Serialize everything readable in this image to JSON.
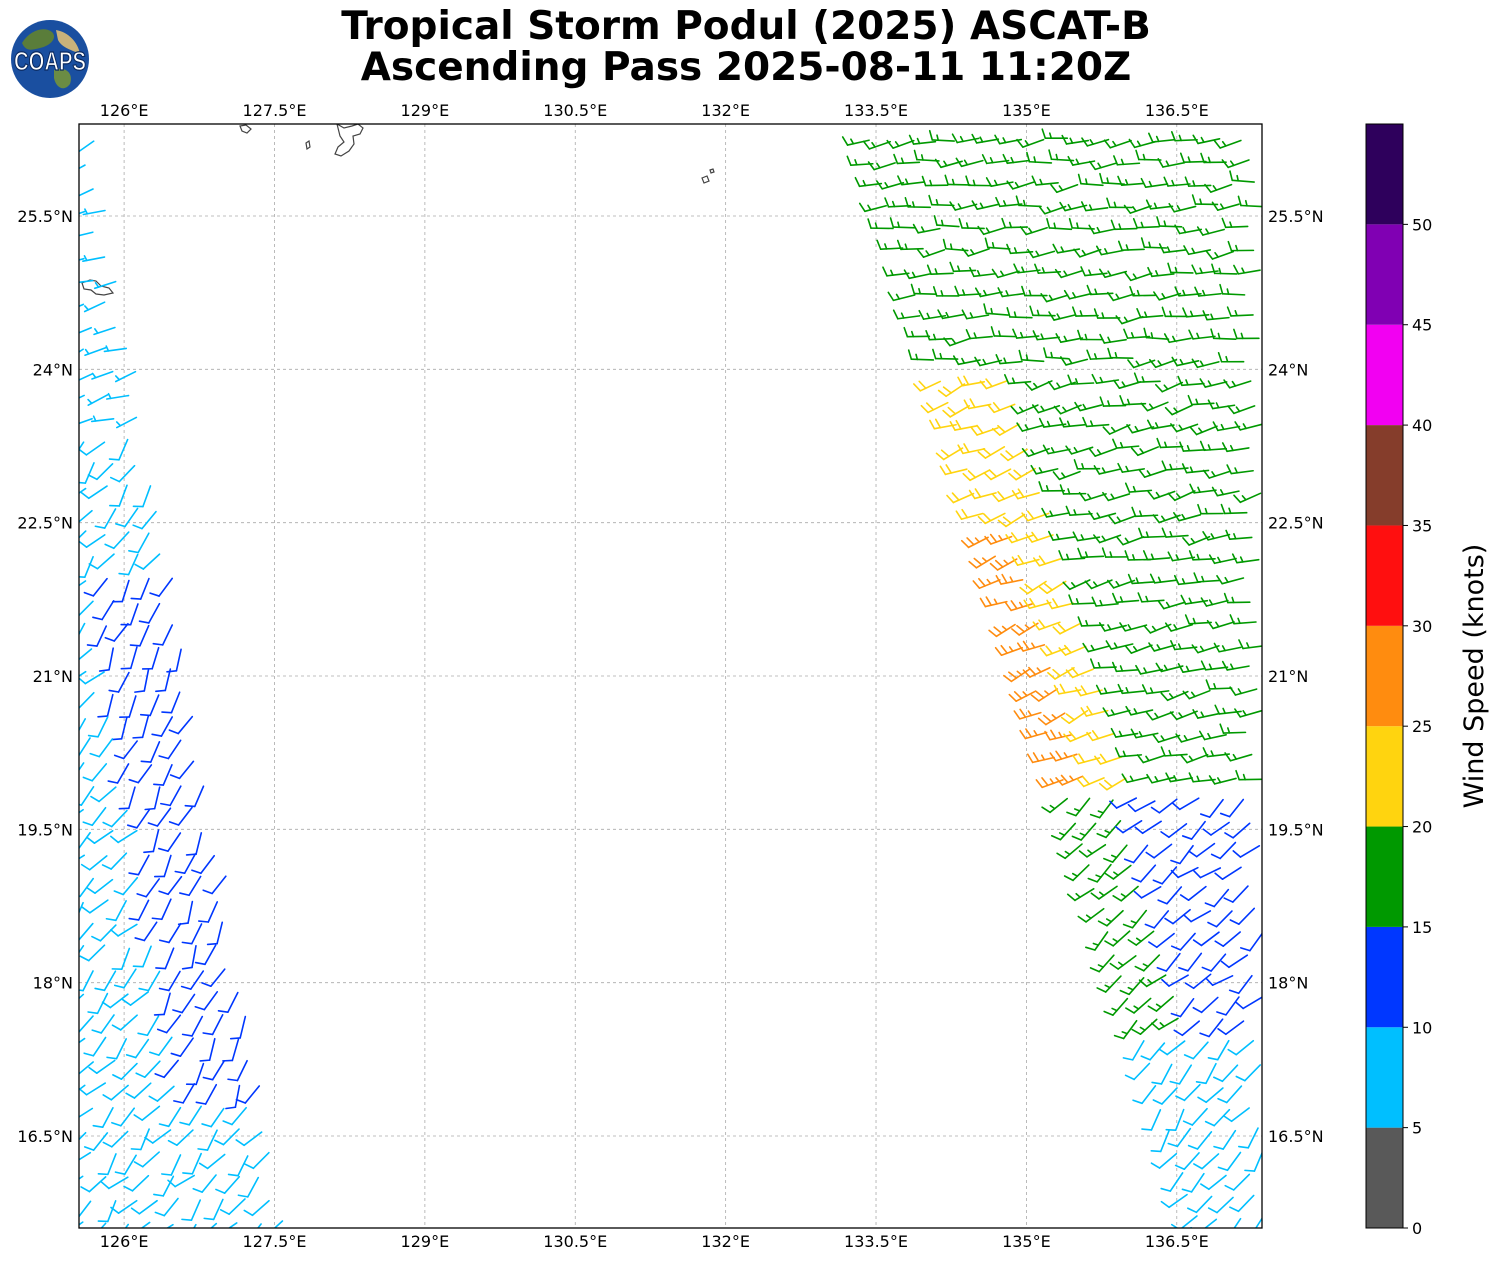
{
  "title": {
    "line1": "Tropical Storm Podul (2025) ASCAT-B",
    "line2": "Ascending Pass 2025-08-11 11:20Z"
  },
  "logo": {
    "text": "COAPS"
  },
  "map": {
    "lon_ticks": [
      {
        "value": 126.0,
        "label": "126°E"
      },
      {
        "value": 127.5,
        "label": "127.5°E"
      },
      {
        "value": 129.0,
        "label": "129°E"
      },
      {
        "value": 130.5,
        "label": "130.5°E"
      },
      {
        "value": 132.0,
        "label": "132°E"
      },
      {
        "value": 133.5,
        "label": "133.5°E"
      },
      {
        "value": 135.0,
        "label": "135°E"
      },
      {
        "value": 136.5,
        "label": "136.5°E"
      }
    ],
    "lat_ticks": [
      {
        "value": 25.5,
        "label": "25.5°N"
      },
      {
        "value": 24.0,
        "label": "24°N"
      },
      {
        "value": 22.5,
        "label": "22.5°N"
      },
      {
        "value": 21.0,
        "label": "21°N"
      },
      {
        "value": 19.5,
        "label": "19.5°N"
      },
      {
        "value": 18.0,
        "label": "18°N"
      },
      {
        "value": 16.5,
        "label": "16.5°N"
      }
    ],
    "lon_range": [
      125.55,
      137.35
    ],
    "lat_range": [
      15.6,
      26.4
    ],
    "gridlines": true
  },
  "colorbar": {
    "title": "Wind Speed (knots)",
    "bins": [
      {
        "min": 0,
        "max": 5,
        "color": "#595959"
      },
      {
        "min": 5,
        "max": 10,
        "color": "#00bfff"
      },
      {
        "min": 10,
        "max": 15,
        "color": "#0037ff"
      },
      {
        "min": 15,
        "max": 20,
        "color": "#009900"
      },
      {
        "min": 20,
        "max": 25,
        "color": "#ffd40f"
      },
      {
        "min": 25,
        "max": 30,
        "color": "#ff8c0f"
      },
      {
        "min": 30,
        "max": 35,
        "color": "#ff0f0f"
      },
      {
        "min": 35,
        "max": 40,
        "color": "#853d2b"
      },
      {
        "min": 40,
        "max": 45,
        "color": "#f200f2"
      },
      {
        "min": 45,
        "max": 50,
        "color": "#8000b3"
      },
      {
        "min": 50,
        "max": 55,
        "color": "#2e005c"
      }
    ],
    "tick_labels": [
      "0",
      "5",
      "10",
      "15",
      "20",
      "25",
      "30",
      "35",
      "40",
      "45",
      "50"
    ]
  },
  "wind_barbs": {
    "swaths": [
      {
        "name": "west",
        "lat_range": [
          15.7,
          26.2
        ],
        "west_edge_lon": 125.6,
        "east_edge_lon_at_north": 125.7,
        "east_edge_lon_at_south": 126.9
      },
      {
        "name": "east",
        "lat_range": [
          15.7,
          26.3
        ],
        "west_edge_lon_at_north": 132.8,
        "west_edge_lon_at_south": 136.0,
        "east_edge_lon": 137.3
      }
    ],
    "speed_regions_kt": [
      {
        "area": "west swath, north of 23.5N",
        "speed": 7
      },
      {
        "area": "west swath, 17-22N inner band",
        "speed": 12
      },
      {
        "area": "west swath, south edge",
        "speed": 8
      },
      {
        "area": "east swath, north",
        "speed": 17
      },
      {
        "area": "east swath, 20-24N west edge",
        "speed": 22
      },
      {
        "area": "east swath, 20-22.5N core",
        "speed": 27
      },
      {
        "area": "east swath, south of 20N east side",
        "speed": 12
      },
      {
        "area": "east swath, far south",
        "speed": 8
      }
    ]
  }
}
